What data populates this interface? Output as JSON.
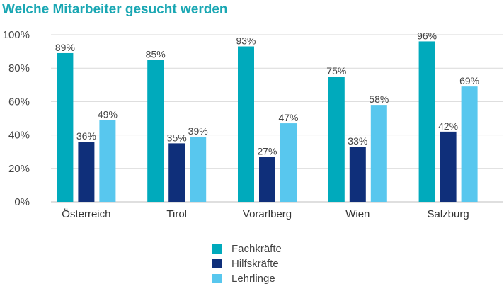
{
  "chart_data": {
    "type": "bar",
    "title": "Welche Mitarbeiter gesucht werden",
    "categories": [
      "Österreich",
      "Tirol",
      "Vorarlberg",
      "Wien",
      "Salzburg"
    ],
    "series": [
      {
        "name": "Fachkräfte",
        "color": "#00aabc",
        "values": [
          89,
          85,
          93,
          75,
          96
        ],
        "labels": [
          "89%",
          "85%",
          "93%",
          "75%",
          "96%"
        ]
      },
      {
        "name": "Hilfskräfte",
        "color": "#0f2f7a",
        "values": [
          36,
          35,
          27,
          33,
          42
        ],
        "labels": [
          "36%",
          "35%",
          "27%",
          "33%",
          "42%"
        ]
      },
      {
        "name": "Lehrlinge",
        "color": "#58c7ee",
        "values": [
          49,
          39,
          47,
          58,
          69
        ],
        "labels": [
          "49%",
          "39%",
          "47%",
          "58%",
          "69%"
        ]
      }
    ],
    "yticks": [
      0,
      20,
      40,
      60,
      80,
      100
    ],
    "ytick_labels": [
      "0%",
      "20%",
      "40%",
      "60%",
      "80%",
      "100%"
    ],
    "ylim": [
      0,
      100
    ],
    "xlabel": "",
    "ylabel": "",
    "grid": true,
    "legend_position": "bottom"
  }
}
